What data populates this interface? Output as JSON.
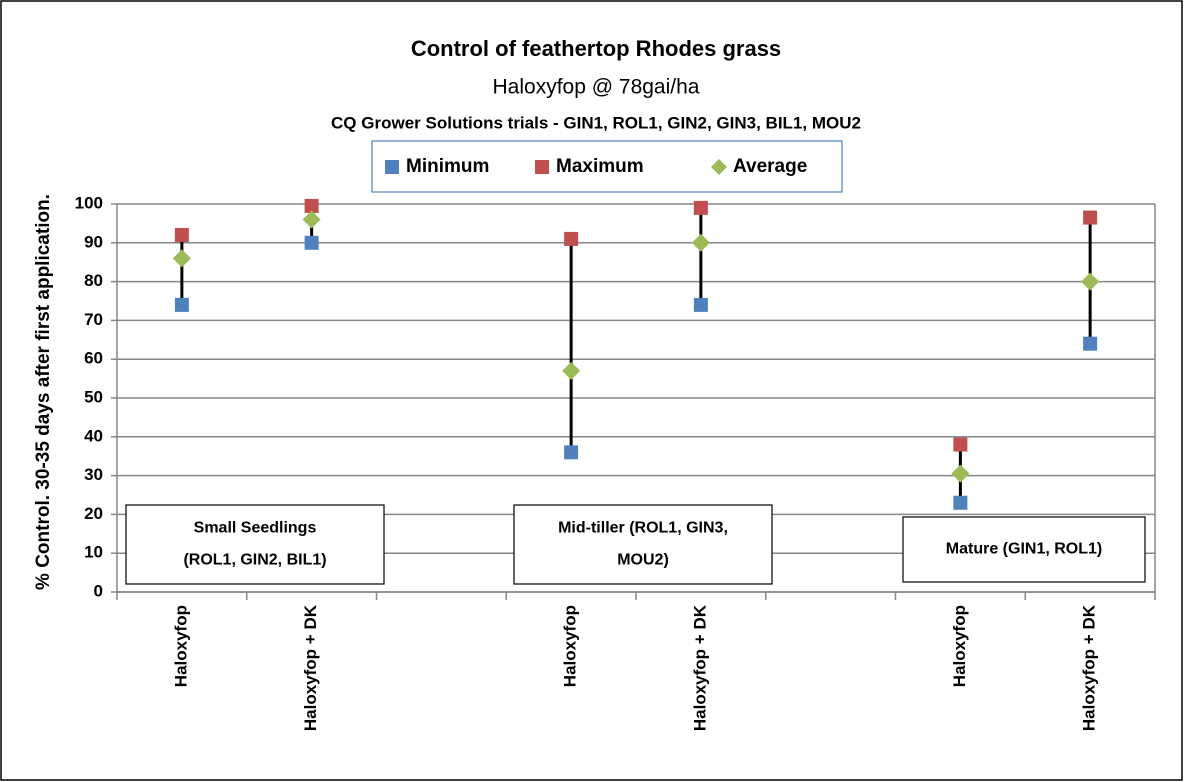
{
  "chart_data": {
    "type": "range",
    "title": "Control of feathertop Rhodes grass",
    "subtitle": "Haloxyfop @ 78gai/ha",
    "subtitle2": "CQ Grower Solutions trials - GIN1, ROL1, GIN2, GIN3, BIL1, MOU2",
    "y_label": "% Control. 30-35 days after first  application.",
    "categories": [
      "Haloxyfop",
      "Haloxyfop + DK",
      null,
      "Haloxyfop",
      "Haloxyfop + DK",
      null,
      "Haloxyfop",
      "Haloxyfop + DK"
    ],
    "series": [
      {
        "name": "Minimum",
        "color": "#4f81bd",
        "marker": "square",
        "values": [
          74,
          90,
          null,
          36,
          74,
          null,
          23,
          64
        ]
      },
      {
        "name": "Maximum",
        "color": "#c0504d",
        "marker": "square",
        "values": [
          92,
          99.5,
          null,
          91,
          99,
          null,
          38,
          96.5
        ]
      },
      {
        "name": "Average",
        "color": "#9bbb59",
        "marker": "diamond",
        "values": [
          86,
          96,
          null,
          57,
          90,
          null,
          30.5,
          80
        ]
      }
    ],
    "ylim": [
      0,
      100
    ],
    "yticks": [
      0,
      10,
      20,
      30,
      40,
      50,
      60,
      70,
      80,
      90,
      100
    ],
    "grid": true,
    "legend": "top",
    "annotations": [
      [
        "Small Seedlings",
        "(ROL1, GIN2, BIL1)"
      ],
      [
        "Mid-tiller (ROL1, GIN3,",
        "MOU2)"
      ],
      [
        "Mature (GIN1, ROL1)"
      ]
    ]
  }
}
